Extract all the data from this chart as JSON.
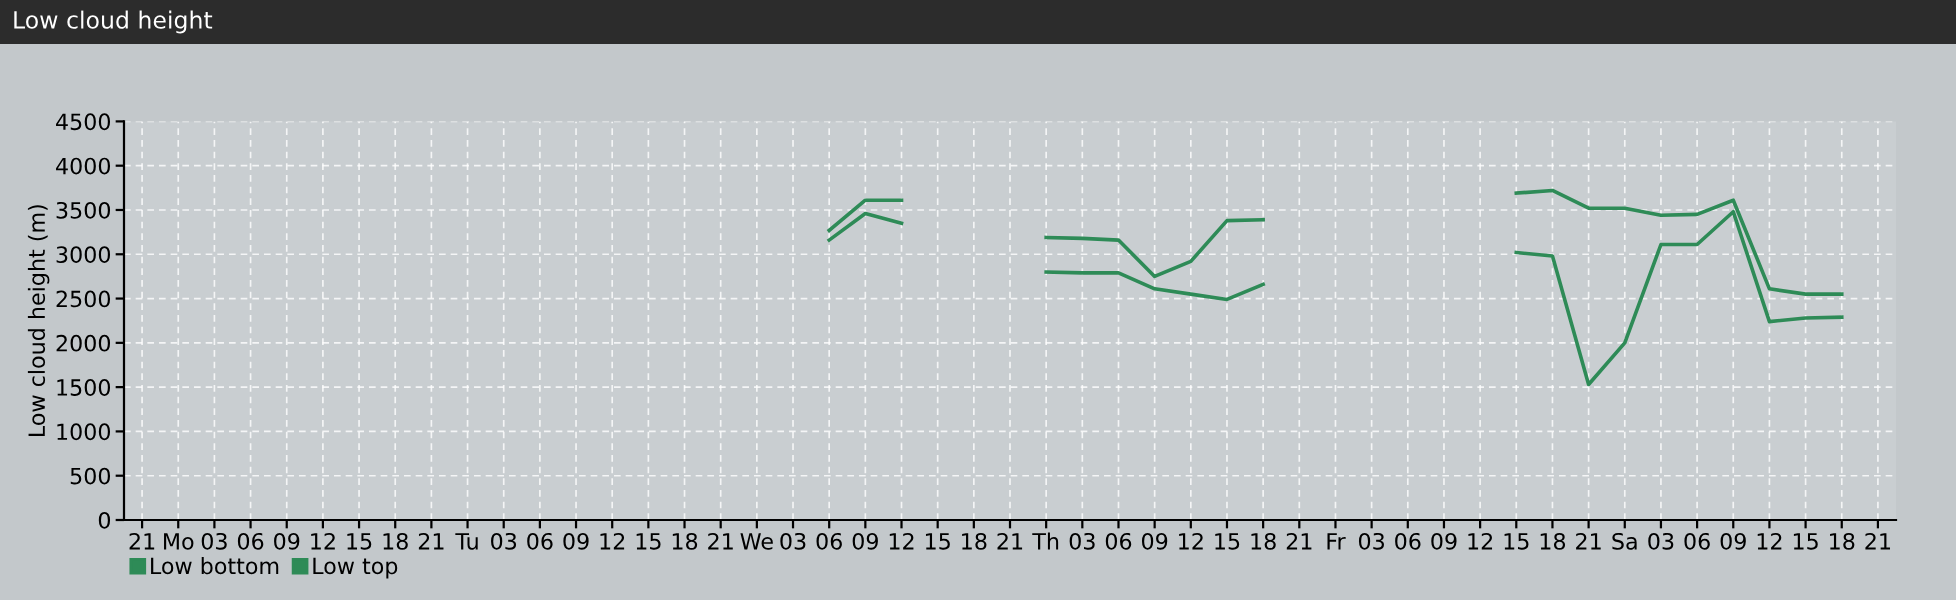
{
  "chart_data": {
    "type": "line",
    "title": "Low cloud height",
    "ylabel": "Low cloud height (m)",
    "categories": [
      "21",
      "Mo",
      "03",
      "06",
      "09",
      "12",
      "15",
      "18",
      "21",
      "Tu",
      "03",
      "06",
      "09",
      "12",
      "15",
      "18",
      "21",
      "We",
      "03",
      "06",
      "09",
      "12",
      "15",
      "18",
      "21",
      "Th",
      "03",
      "06",
      "09",
      "12",
      "15",
      "18",
      "21",
      "Fr",
      "03",
      "06",
      "09",
      "12",
      "15",
      "18",
      "21",
      "Sa",
      "03",
      "06",
      "09",
      "12",
      "15",
      "18",
      "21"
    ],
    "series": [
      {
        "name": "Low bottom",
        "color": "#2e8b57",
        "values": [
          null,
          null,
          null,
          null,
          null,
          null,
          null,
          null,
          null,
          null,
          null,
          null,
          null,
          null,
          null,
          null,
          null,
          null,
          null,
          3160,
          3460,
          3350,
          null,
          null,
          null,
          2800,
          2790,
          2790,
          2610,
          2550,
          2490,
          2660,
          null,
          null,
          null,
          null,
          null,
          null,
          3020,
          2980,
          1530,
          2000,
          3110,
          3110,
          3480,
          2240,
          2280,
          2290,
          null
        ]
      },
      {
        "name": "Low top",
        "color": "#2e8b57",
        "values": [
          null,
          null,
          null,
          null,
          null,
          null,
          null,
          null,
          null,
          null,
          null,
          null,
          null,
          null,
          null,
          null,
          null,
          null,
          null,
          3270,
          3610,
          3610,
          null,
          null,
          null,
          3190,
          3180,
          3160,
          2750,
          2920,
          3380,
          3390,
          null,
          null,
          null,
          null,
          null,
          null,
          3690,
          3720,
          3520,
          3520,
          3440,
          3450,
          3610,
          2610,
          2550,
          2550,
          null
        ]
      }
    ],
    "ylim": [
      0,
      4500
    ],
    "yticks": [
      0,
      500,
      1000,
      1500,
      2000,
      2500,
      3000,
      3500,
      4000,
      4500
    ],
    "grid": true,
    "legend": "bottom left",
    "marker": "none",
    "line_style": "solid"
  }
}
